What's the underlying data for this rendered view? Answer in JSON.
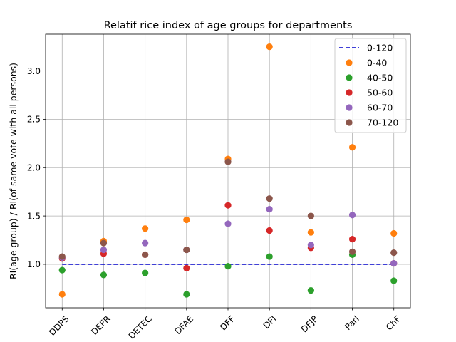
{
  "chart_data": {
    "type": "scatter",
    "title": "Relatif rice index of age groups for departments",
    "xlabel": "",
    "ylabel": "RI(age group) / RI(of same vote with all persons)",
    "categories": [
      "DDPS",
      "DEFR",
      "DETEC",
      "DFAE",
      "DFF",
      "DFI",
      "DFJP",
      "Parl",
      "ChF"
    ],
    "ylim": [
      0.55,
      3.38
    ],
    "yticks": [
      1.0,
      1.5,
      2.0,
      2.5,
      3.0
    ],
    "ytick_labels": [
      "1.0",
      "1.5",
      "2.0",
      "2.5",
      "3.0"
    ],
    "grid": true,
    "legend_position": "top-right",
    "reference_line": {
      "name": "0-120",
      "value": 1.0,
      "style": "dashed",
      "color": "#0000cc"
    },
    "series": [
      {
        "name": "0-40",
        "color": "#ff7f0e",
        "values": [
          0.69,
          1.24,
          1.37,
          1.46,
          2.09,
          3.25,
          1.33,
          2.21,
          1.32
        ]
      },
      {
        "name": "40-50",
        "color": "#2ca02c",
        "values": [
          0.94,
          0.89,
          0.91,
          0.69,
          0.98,
          1.08,
          0.73,
          1.1,
          0.83
        ]
      },
      {
        "name": "50-60",
        "color": "#d62728",
        "values": [
          1.06,
          1.11,
          1.1,
          0.96,
          1.61,
          1.35,
          1.17,
          1.26,
          1.01
        ]
      },
      {
        "name": "60-70",
        "color": "#9467bd",
        "values": [
          1.07,
          1.15,
          1.22,
          1.15,
          1.42,
          1.57,
          1.2,
          1.51,
          1.01
        ]
      },
      {
        "name": "70-120",
        "color": "#8c564b",
        "values": [
          1.08,
          1.22,
          1.1,
          1.15,
          2.06,
          1.68,
          1.5,
          1.13,
          1.12
        ]
      }
    ]
  }
}
